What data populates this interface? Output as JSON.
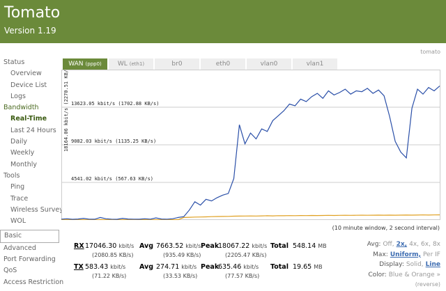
{
  "header": {
    "title": "Tomato",
    "version": "Version 1.19",
    "hostname": "tomato"
  },
  "sidebar": [
    {
      "text": "Status",
      "group": true
    },
    {
      "text": "Overview"
    },
    {
      "text": "Device List"
    },
    {
      "text": "Logs"
    },
    {
      "text": "Bandwidth",
      "group": true,
      "active": true
    },
    {
      "text": "Real-Time",
      "active": true
    },
    {
      "text": "Last 24 Hours"
    },
    {
      "text": "Daily"
    },
    {
      "text": "Weekly"
    },
    {
      "text": "Monthly"
    },
    {
      "text": "Tools",
      "group": true
    },
    {
      "text": "Ping"
    },
    {
      "text": "Trace"
    },
    {
      "text": "Wireless Survey"
    },
    {
      "text": "WOL"
    },
    {
      "text": "Basic",
      "group": true,
      "boxed": true
    },
    {
      "text": "Advanced",
      "group": true
    },
    {
      "text": "Port Forwarding",
      "group": true
    },
    {
      "text": "QoS",
      "group": true
    },
    {
      "text": "Access Restriction",
      "group": true
    }
  ],
  "tabs": [
    {
      "name": "WAN",
      "dev": "(ppp0)",
      "active": true
    },
    {
      "name": "WL",
      "dev": "(eth1)"
    },
    {
      "name": "br0"
    },
    {
      "name": "eth0"
    },
    {
      "name": "vlan0"
    },
    {
      "name": "vlan1"
    }
  ],
  "chart_data": {
    "type": "line",
    "max_label": "18164.06 kbit/s (2270.51 KB/s) >",
    "ylim": [
      0,
      18164.06
    ],
    "yticks": [
      {
        "value": 4541.02,
        "label": "4541.02 kbit/s (567.63 KB/s)"
      },
      {
        "value": 9082.03,
        "label": "9082.03 kbit/s (1135.25 KB/s)"
      },
      {
        "value": 13623.05,
        "label": "13623.05 kbit/s (1702.88 KB/s)"
      }
    ],
    "series": [
      {
        "name": "RX",
        "color": "#2a4fa8",
        "values": [
          100,
          150,
          80,
          120,
          200,
          100,
          90,
          300,
          150,
          100,
          80,
          200,
          120,
          100,
          90,
          150,
          100,
          250,
          120,
          100,
          150,
          300,
          400,
          1200,
          2200,
          1800,
          2500,
          2300,
          2700,
          3000,
          3200,
          5000,
          11500,
          9200,
          10500,
          9800,
          11000,
          10700,
          12000,
          12600,
          13200,
          14000,
          13800,
          14600,
          14300,
          14900,
          15300,
          14700,
          15600,
          15100,
          15400,
          15800,
          15200,
          15600,
          15500,
          15900,
          15300,
          15700,
          15000,
          12500,
          9500,
          8200,
          7500,
          13500,
          15800,
          15200,
          16000,
          15600,
          16200
        ]
      },
      {
        "name": "TX",
        "color": "#e0a020",
        "values": [
          20,
          30,
          20,
          25,
          30,
          20,
          20,
          40,
          30,
          20,
          20,
          30,
          25,
          20,
          20,
          30,
          20,
          35,
          25,
          20,
          30,
          40,
          300,
          330,
          350,
          360,
          380,
          400,
          420,
          430,
          440,
          460,
          470,
          480,
          490,
          480,
          500,
          510,
          500,
          520,
          510,
          530,
          520,
          540,
          530,
          550,
          540,
          550,
          560,
          550,
          560,
          570,
          560,
          570,
          580,
          570,
          580,
          590,
          580,
          590,
          580,
          590,
          600,
          590,
          600,
          610,
          600,
          610,
          620
        ]
      }
    ],
    "note": "(10 minute window, 2 second interval)"
  },
  "stats": {
    "rows": [
      {
        "label": "RX",
        "cur": "17046.30",
        "cur_unit": "kbit/s",
        "cur_sub": "(2080.85 KB/s)",
        "avg_label": "Avg",
        "avg": "7663.52",
        "avg_unit": "kbit/s",
        "avg_sub": "(935.49 KB/s)",
        "peak_label": "Peak",
        "peak": "18067.22",
        "peak_unit": "kbit/s",
        "peak_sub": "(2205.47 KB/s)",
        "total_label": "Total",
        "total": "548.14",
        "total_unit": "MB"
      },
      {
        "label": "TX",
        "cur": "583.43",
        "cur_unit": "kbit/s",
        "cur_sub": "(71.22 KB/s)",
        "avg_label": "Avg",
        "avg": "274.71",
        "avg_unit": "kbit/s",
        "avg_sub": "(33.53 KB/s)",
        "peak_label": "Peak",
        "peak": "635.46",
        "peak_unit": "kbit/s",
        "peak_sub": "(77.57 KB/s)",
        "total_label": "Total",
        "total": "19.65",
        "total_unit": "MB"
      }
    ],
    "options": [
      {
        "label": "Avg:",
        "items": [
          "Off,",
          "2x,",
          "4x,",
          "6x,",
          "8x"
        ],
        "active": 1
      },
      {
        "label": "Max:",
        "items": [
          "Uniform,",
          "Per IF"
        ],
        "active": 0
      },
      {
        "label": "Display:",
        "items": [
          "Solid,",
          "Line"
        ],
        "active": 1
      },
      {
        "label": "Color:",
        "items": [
          "Blue & Orange »"
        ]
      },
      {
        "label": null,
        "items": [
          "(reverse)"
        ]
      }
    ]
  }
}
